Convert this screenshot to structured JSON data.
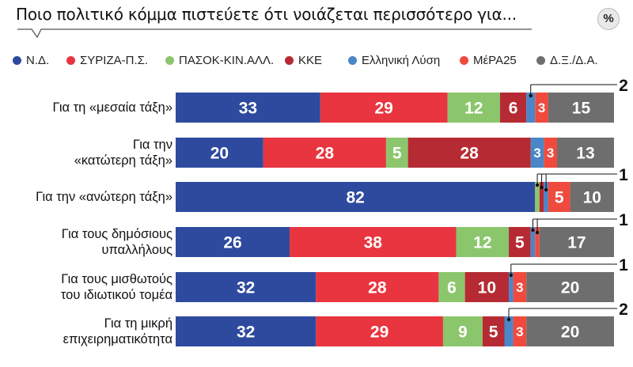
{
  "title": "Ποιο πολιτικό κόμμα πιστεύετε ότι νοιάζεται περισσότερο για...",
  "badge": "%",
  "chart_data": {
    "type": "bar",
    "orientation": "horizontal",
    "stacked": true,
    "title": "Ποιο πολιτικό κόμμα πιστεύετε ότι νοιάζεται περισσότερο για...",
    "categories": [
      [
        "Για τη «μεσαία τάξη»"
      ],
      [
        "Για την",
        "«κατώτερη τάξη»"
      ],
      [
        "Για την «ανώτερη τάξη»"
      ],
      [
        "Για τους δημόσιους",
        "υπαλλήλους"
      ],
      [
        "Για τους μισθωτούς",
        "του ιδιωτικού τομέα"
      ],
      [
        "Για τη μικρή",
        "επιχειρηματικότητα"
      ]
    ],
    "series": [
      {
        "name": "Ν.Δ.",
        "color": "#2e4a9e",
        "values": [
          33,
          20,
          82,
          26,
          32,
          32
        ]
      },
      {
        "name": "ΣΥΡΙΖΑ-Π.Σ.",
        "color": "#e8353f",
        "values": [
          29,
          28,
          0,
          38,
          28,
          29
        ]
      },
      {
        "name": "ΠΑΣΟΚ-ΚΙΝ.ΑΛΛ.",
        "color": "#8cc66c",
        "values": [
          12,
          5,
          1,
          12,
          6,
          9
        ]
      },
      {
        "name": "ΚΚΕ",
        "color": "#b62b33",
        "values": [
          6,
          28,
          1,
          5,
          10,
          5
        ]
      },
      {
        "name": "Ελληνική Λύση",
        "color": "#4a86c8",
        "values": [
          2,
          3,
          1,
          1,
          1,
          2
        ]
      },
      {
        "name": "ΜέΡΑ25",
        "color": "#f04a3e",
        "values": [
          3,
          3,
          5,
          1,
          3,
          3
        ]
      },
      {
        "name": "Δ.Ξ./Δ.Α.",
        "color": "#6e6e6e",
        "values": [
          15,
          13,
          10,
          17,
          20,
          20
        ]
      }
    ],
    "legend_position": "top",
    "xlim": [
      0,
      100
    ]
  }
}
